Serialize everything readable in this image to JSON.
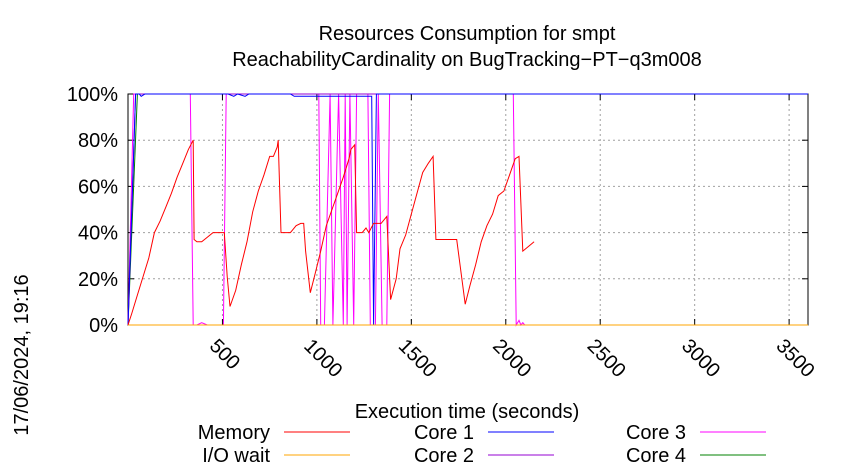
{
  "chart_data": {
    "type": "line",
    "title": "Resources Consumption for smpt",
    "subtitle": "ReachabilityCardinality on BugTracking−PT−q3m008",
    "xlabel": "Execution time (seconds)",
    "ylabel": "",
    "timestamp": "17/06/2024, 19:16",
    "xlim": [
      0,
      3600
    ],
    "ylim": [
      0,
      100
    ],
    "x_ticks": [
      500,
      1000,
      1500,
      2000,
      2500,
      3000,
      3500
    ],
    "x_tick_labels": [
      "500",
      "1000",
      "1500",
      "2000",
      "2500",
      "3000",
      "3500"
    ],
    "y_ticks": [
      0,
      20,
      40,
      60,
      80,
      100
    ],
    "y_tick_labels": [
      "0%",
      "20%",
      "40%",
      "60%",
      "80%",
      "100%"
    ],
    "grid": true,
    "legend_position": "bottom",
    "series": [
      {
        "name": "Memory",
        "color": "#ff0000",
        "points": [
          [
            0,
            0
          ],
          [
            20,
            5
          ],
          [
            50,
            13
          ],
          [
            80,
            21
          ],
          [
            110,
            29
          ],
          [
            140,
            40
          ],
          [
            170,
            45
          ],
          [
            200,
            51
          ],
          [
            230,
            57
          ],
          [
            260,
            64
          ],
          [
            290,
            70
          ],
          [
            320,
            76
          ],
          [
            345,
            80
          ],
          [
            350,
            37
          ],
          [
            365,
            36
          ],
          [
            390,
            36
          ],
          [
            420,
            38
          ],
          [
            450,
            40
          ],
          [
            480,
            40
          ],
          [
            505,
            40
          ],
          [
            510,
            40
          ],
          [
            525,
            21
          ],
          [
            540,
            8
          ],
          [
            570,
            15
          ],
          [
            600,
            26
          ],
          [
            630,
            36
          ],
          [
            660,
            49
          ],
          [
            690,
            58
          ],
          [
            720,
            65
          ],
          [
            750,
            73
          ],
          [
            770,
            73
          ],
          [
            790,
            77
          ],
          [
            795,
            80
          ],
          [
            810,
            40
          ],
          [
            830,
            40
          ],
          [
            860,
            40
          ],
          [
            870,
            41
          ],
          [
            890,
            43
          ],
          [
            915,
            44
          ],
          [
            930,
            44
          ],
          [
            940,
            32
          ],
          [
            965,
            14
          ],
          [
            990,
            22
          ],
          [
            1020,
            32
          ],
          [
            1050,
            43
          ],
          [
            1080,
            50
          ],
          [
            1110,
            57
          ],
          [
            1140,
            64
          ],
          [
            1170,
            72
          ],
          [
            1180,
            76
          ],
          [
            1200,
            78
          ],
          [
            1210,
            40
          ],
          [
            1240,
            40
          ],
          [
            1260,
            42
          ],
          [
            1275,
            40
          ],
          [
            1300,
            44
          ],
          [
            1330,
            44
          ],
          [
            1340,
            44
          ],
          [
            1370,
            47
          ],
          [
            1390,
            11
          ],
          [
            1420,
            20
          ],
          [
            1440,
            33
          ],
          [
            1470,
            39
          ],
          [
            1500,
            48
          ],
          [
            1530,
            57
          ],
          [
            1560,
            66
          ],
          [
            1590,
            70
          ],
          [
            1615,
            73
          ],
          [
            1630,
            37
          ],
          [
            1660,
            37
          ],
          [
            1690,
            37
          ],
          [
            1720,
            37
          ],
          [
            1740,
            37
          ],
          [
            1785,
            9
          ],
          [
            1810,
            17
          ],
          [
            1840,
            26
          ],
          [
            1870,
            36
          ],
          [
            1900,
            43
          ],
          [
            1930,
            48
          ],
          [
            1960,
            56
          ],
          [
            1990,
            58
          ],
          [
            2020,
            65
          ],
          [
            2050,
            72
          ],
          [
            2070,
            73
          ],
          [
            2090,
            32
          ],
          [
            2120,
            34
          ],
          [
            2150,
            36
          ]
        ]
      },
      {
        "name": "I/O wait",
        "color": "#ffa500",
        "points": [
          [
            0,
            0
          ],
          [
            3600,
            0
          ]
        ]
      },
      {
        "name": "Core 1",
        "color": "#0000ff",
        "points": [
          [
            0,
            0
          ],
          [
            40,
            100
          ],
          [
            60,
            100
          ],
          [
            70,
            99
          ],
          [
            90,
            100
          ],
          [
            150,
            100
          ],
          [
            530,
            100
          ],
          [
            560,
            99
          ],
          [
            580,
            100
          ],
          [
            620,
            99
          ],
          [
            640,
            100
          ],
          [
            860,
            100
          ],
          [
            880,
            99
          ],
          [
            1290,
            99
          ],
          [
            1300,
            0
          ],
          [
            1315,
            100
          ],
          [
            3600,
            100
          ]
        ]
      },
      {
        "name": "Core 2",
        "color": "#9400d3",
        "points": [
          [
            0,
            0
          ],
          [
            40,
            100
          ],
          [
            3600,
            100
          ]
        ]
      },
      {
        "name": "Core 3",
        "color": "#ff00ff",
        "points": [
          [
            0,
            0
          ],
          [
            30,
            100
          ],
          [
            330,
            100
          ],
          [
            345,
            0
          ],
          [
            365,
            0
          ],
          [
            390,
            1
          ],
          [
            420,
            0
          ],
          [
            505,
            0
          ],
          [
            520,
            100
          ],
          [
            1010,
            100
          ],
          [
            1020,
            0
          ],
          [
            1040,
            0
          ],
          [
            1070,
            100
          ],
          [
            1085,
            0
          ],
          [
            1115,
            100
          ],
          [
            1140,
            0
          ],
          [
            1150,
            100
          ],
          [
            1160,
            0
          ],
          [
            1175,
            100
          ],
          [
            1195,
            0
          ],
          [
            1210,
            100
          ],
          [
            1270,
            100
          ],
          [
            1283,
            0
          ],
          [
            1310,
            0
          ],
          [
            1325,
            100
          ],
          [
            1345,
            0
          ],
          [
            1370,
            0
          ],
          [
            1385,
            100
          ],
          [
            2040,
            100
          ],
          [
            2055,
            0
          ],
          [
            2070,
            2
          ],
          [
            2080,
            0
          ],
          [
            2090,
            1
          ],
          [
            2100,
            0
          ],
          [
            3600,
            0
          ]
        ]
      },
      {
        "name": "Core 4",
        "color": "#008000",
        "points": [
          [
            0,
            0
          ],
          [
            50,
            100
          ],
          [
            3600,
            100
          ]
        ]
      }
    ]
  }
}
